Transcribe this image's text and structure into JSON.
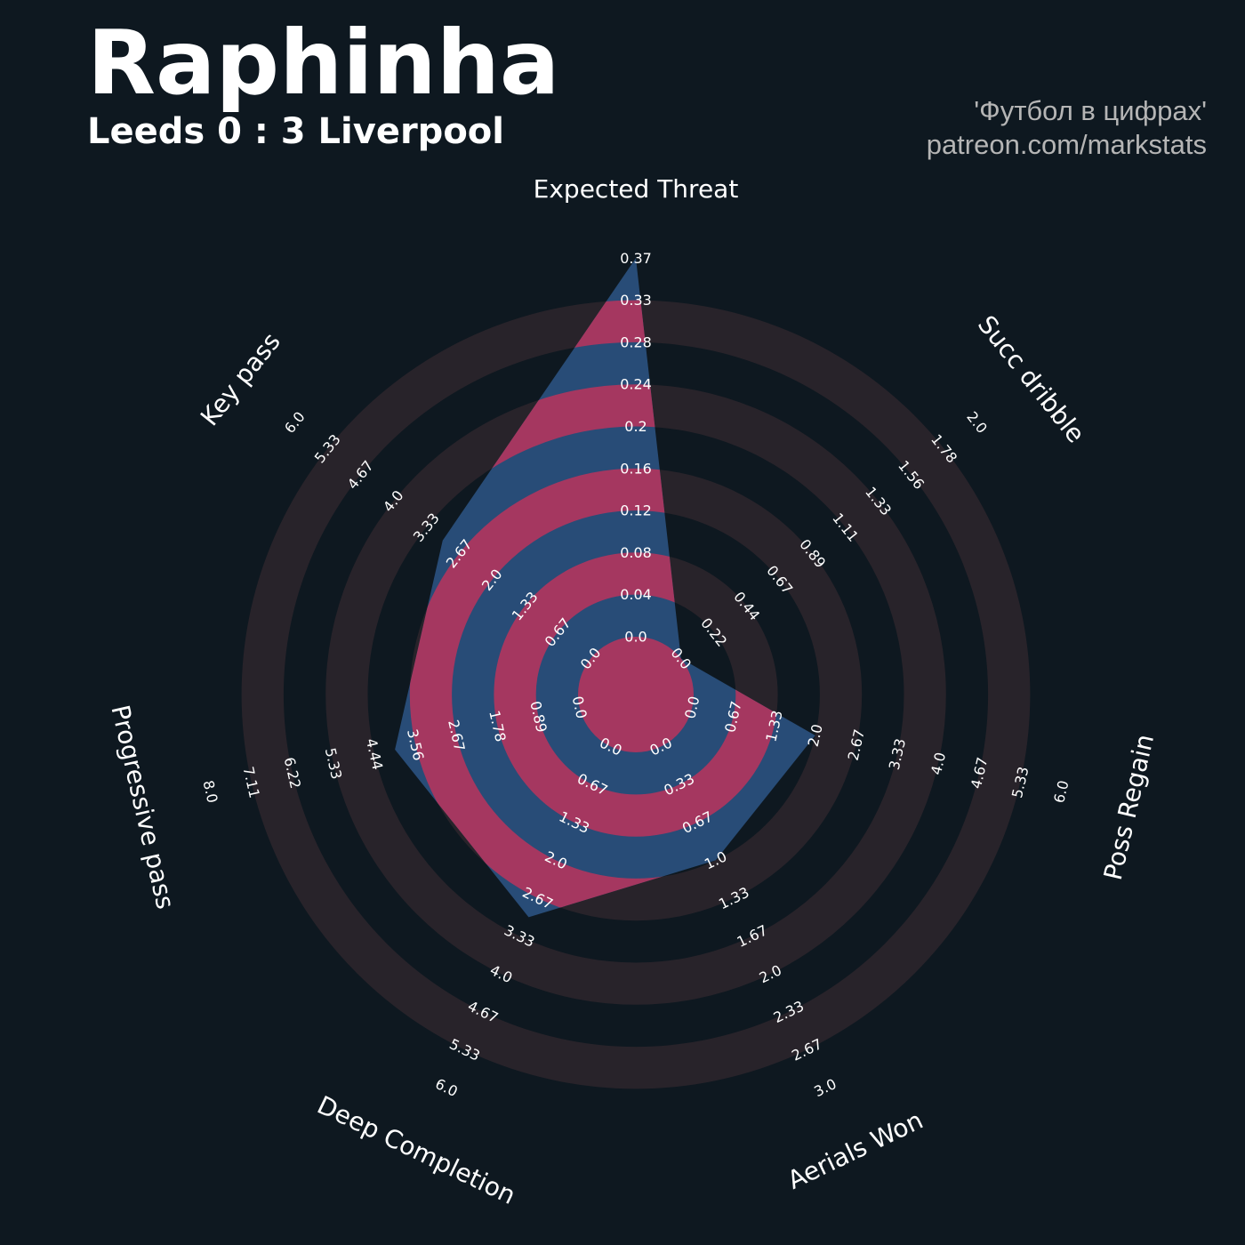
{
  "header": {
    "title": "Raphinha",
    "subtitle": "Leeds 0 : 3 Liverpool",
    "credit_line1": "'Футбол в цифрах'",
    "credit_line2": "patreon.com/markstats"
  },
  "colors": {
    "background": "#0e1820",
    "ring_band": "#28232a",
    "polygon_band_a": "#284c77",
    "polygon_band_b": "#a53760",
    "text": "#ffffff",
    "credit": "#b5b5b5"
  },
  "chart_data": {
    "type": "radar",
    "title": "Raphinha",
    "subtitle": "Leeds 0 : 3 Liverpool",
    "ring_count": 9,
    "axes": [
      {
        "name": "Expected Threat",
        "min": 0.0,
        "max": 0.37,
        "value": 0.37,
        "ticks": [
          "0.0",
          "0.04",
          "0.08",
          "0.12",
          "0.16",
          "0.2",
          "0.24",
          "0.28",
          "0.33",
          "0.37"
        ]
      },
      {
        "name": "Succ dribble",
        "min": 0.0,
        "max": 2.0,
        "value": 0.0,
        "ticks": [
          "0.0",
          "0.22",
          "0.44",
          "0.67",
          "0.89",
          "1.11",
          "1.33",
          "1.56",
          "1.78",
          "2.0"
        ]
      },
      {
        "name": "Poss Regain",
        "min": 0.0,
        "max": 6.0,
        "value": 2.0,
        "ticks": [
          "0.0",
          "0.67",
          "1.33",
          "2.0",
          "2.67",
          "3.33",
          "4.0",
          "4.67",
          "5.33",
          "6.0"
        ]
      },
      {
        "name": "Aerials Won",
        "min": 0.0,
        "max": 3.0,
        "value": 1.0,
        "ticks": [
          "0.0",
          "0.33",
          "0.67",
          "1.0",
          "1.33",
          "1.67",
          "2.0",
          "2.33",
          "2.67",
          "3.0"
        ]
      },
      {
        "name": "Deep Completion",
        "min": 0.0,
        "max": 6.0,
        "value": 3.0,
        "ticks": [
          "0.0",
          "0.67",
          "1.33",
          "2.0",
          "2.67",
          "3.33",
          "4.0",
          "4.67",
          "5.33",
          "6.0"
        ]
      },
      {
        "name": "Progressive pass",
        "min": 0.0,
        "max": 8.0,
        "value": 4.0,
        "ticks": [
          "0.0",
          "0.89",
          "1.78",
          "2.67",
          "3.56",
          "4.44",
          "5.33",
          "6.22",
          "7.11",
          "8.0"
        ]
      },
      {
        "name": "Key pass",
        "min": 0.0,
        "max": 6.0,
        "value": 3.0,
        "ticks": [
          "0.0",
          "0.67",
          "1.33",
          "2.0",
          "2.67",
          "3.33",
          "4.0",
          "4.67",
          "5.33",
          "6.0"
        ]
      }
    ]
  }
}
